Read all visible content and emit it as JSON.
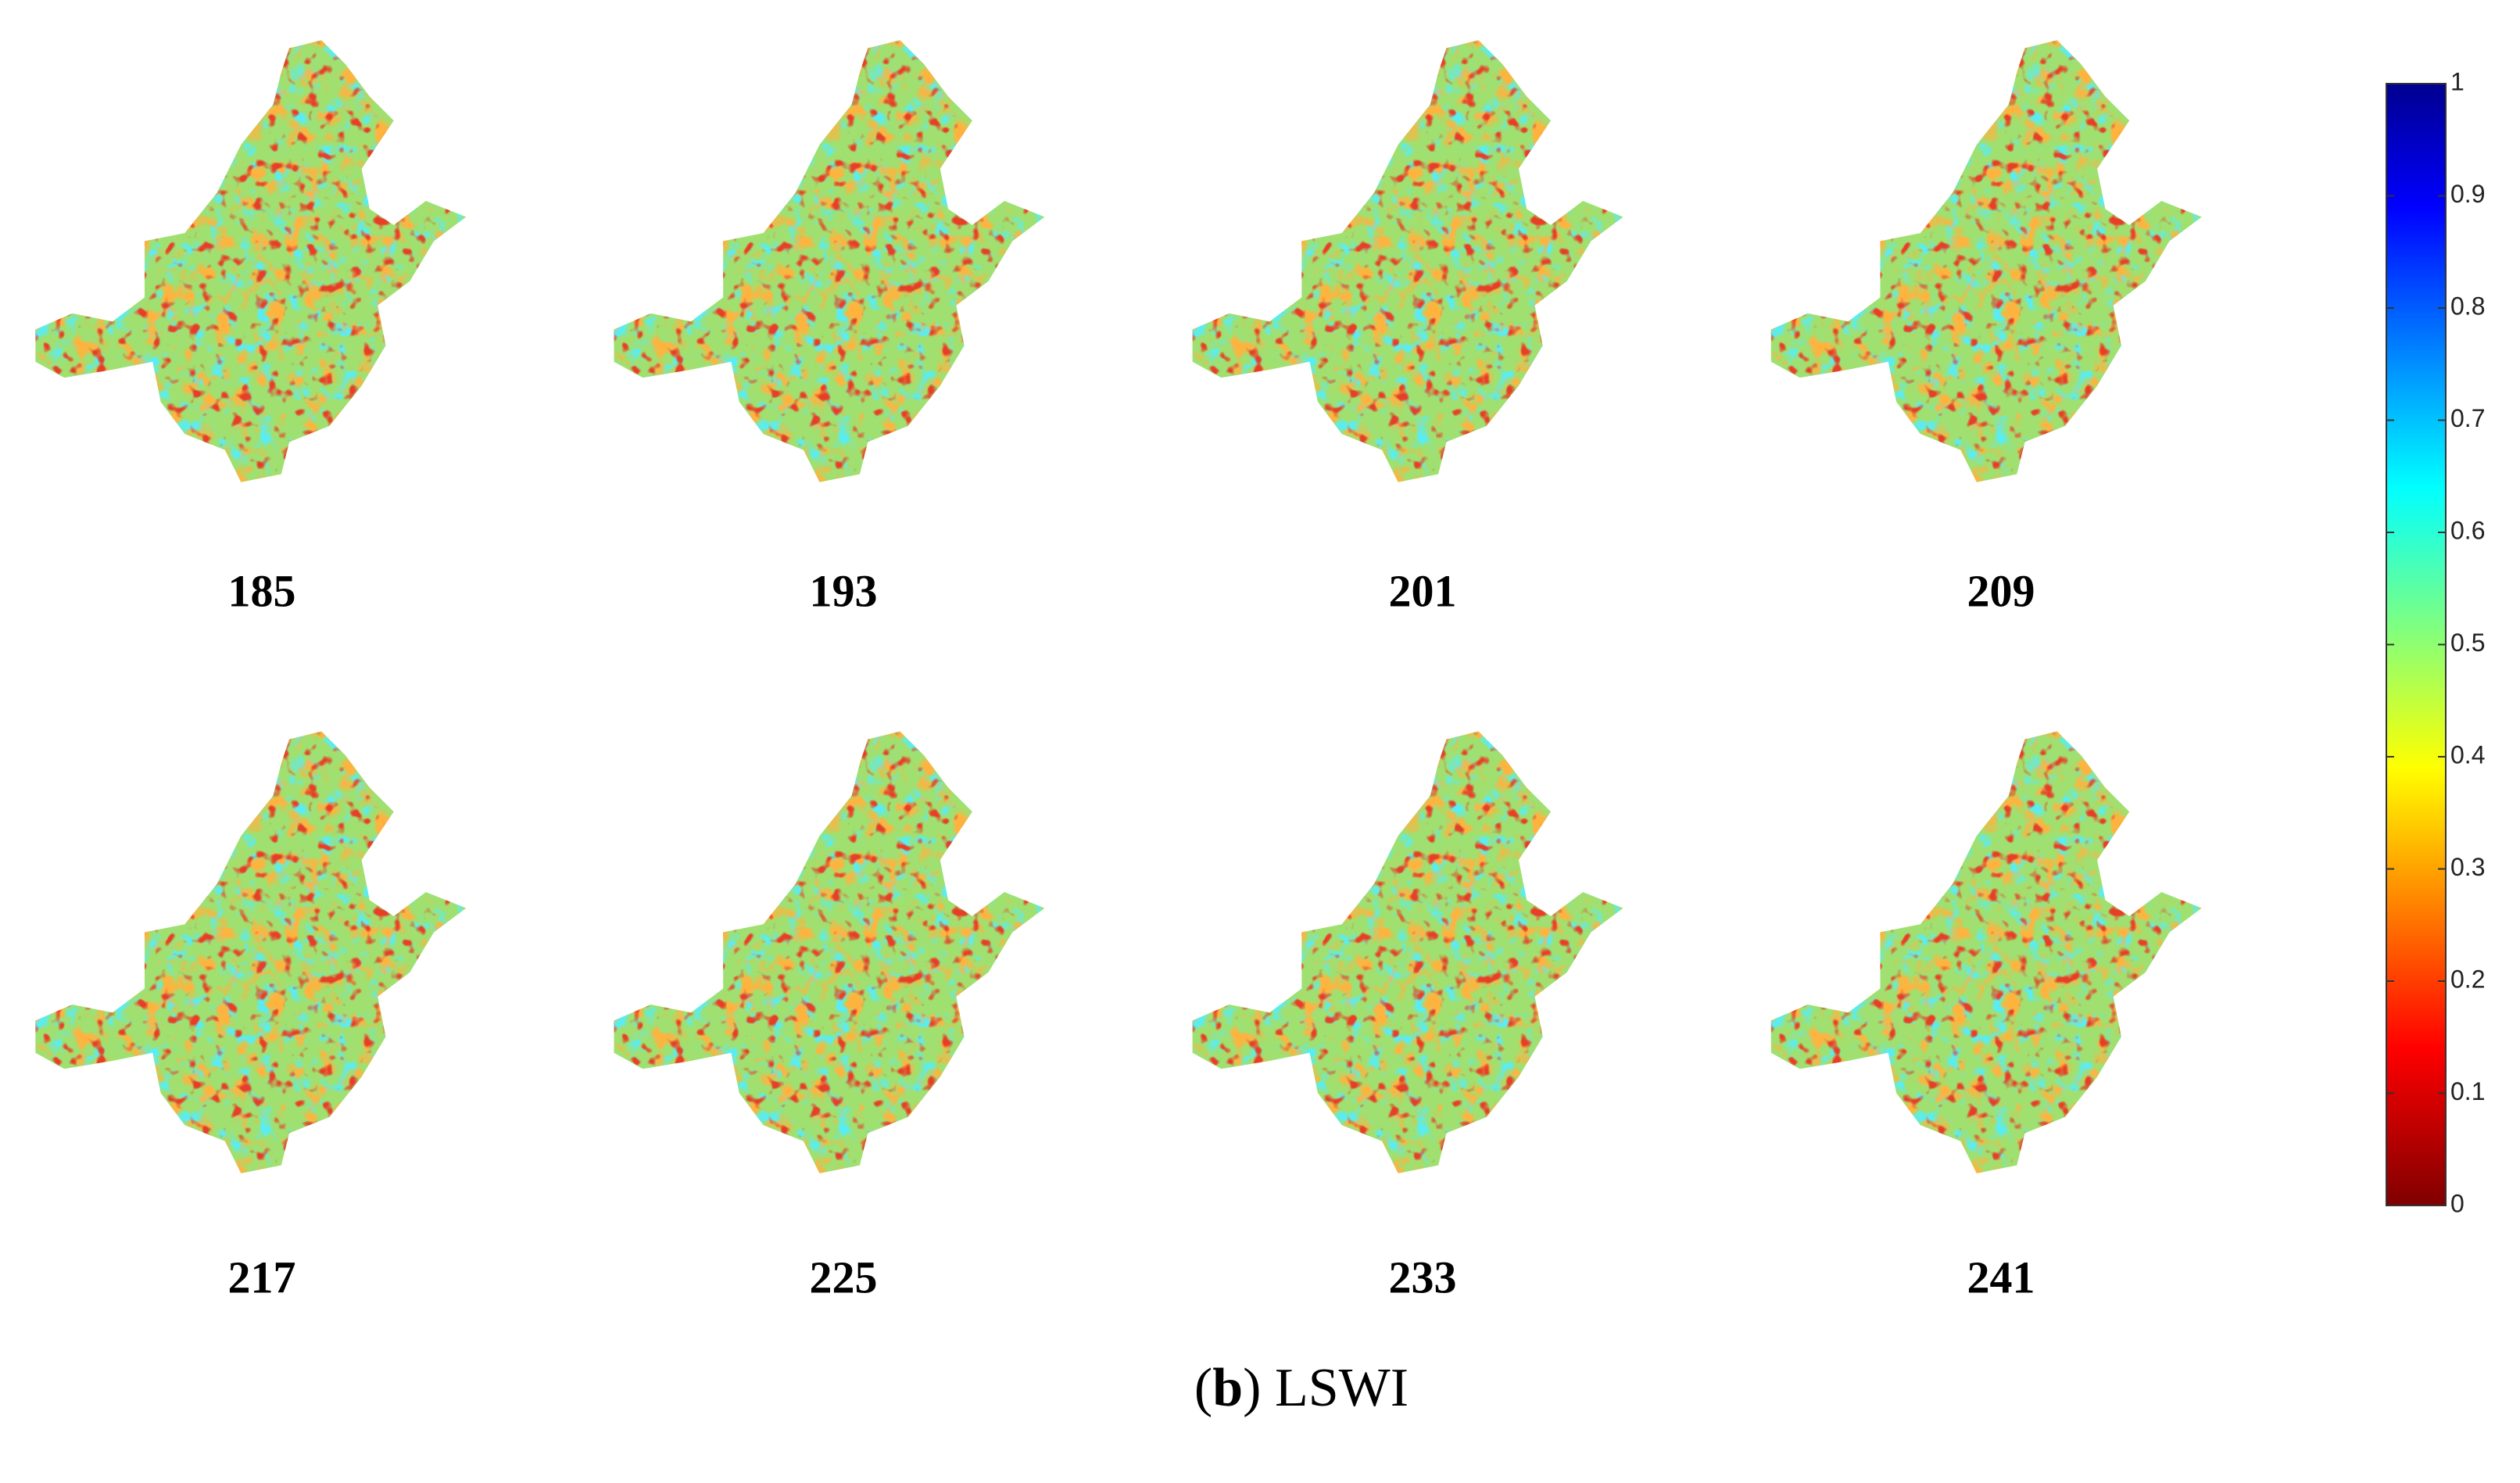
{
  "panels": [
    {
      "label": "185"
    },
    {
      "label": "193"
    },
    {
      "label": "201"
    },
    {
      "label": "209"
    },
    {
      "label": "217"
    },
    {
      "label": "225"
    },
    {
      "label": "233"
    },
    {
      "label": "241"
    }
  ],
  "colorbar": {
    "lim": [
      0,
      1
    ],
    "ticks": [
      0,
      0.1,
      0.2,
      0.3,
      0.4,
      0.5,
      0.6,
      0.7,
      0.8,
      0.9,
      1
    ]
  },
  "caption": {
    "open": "(",
    "letter": "b",
    "rest": ") LSWI"
  }
}
